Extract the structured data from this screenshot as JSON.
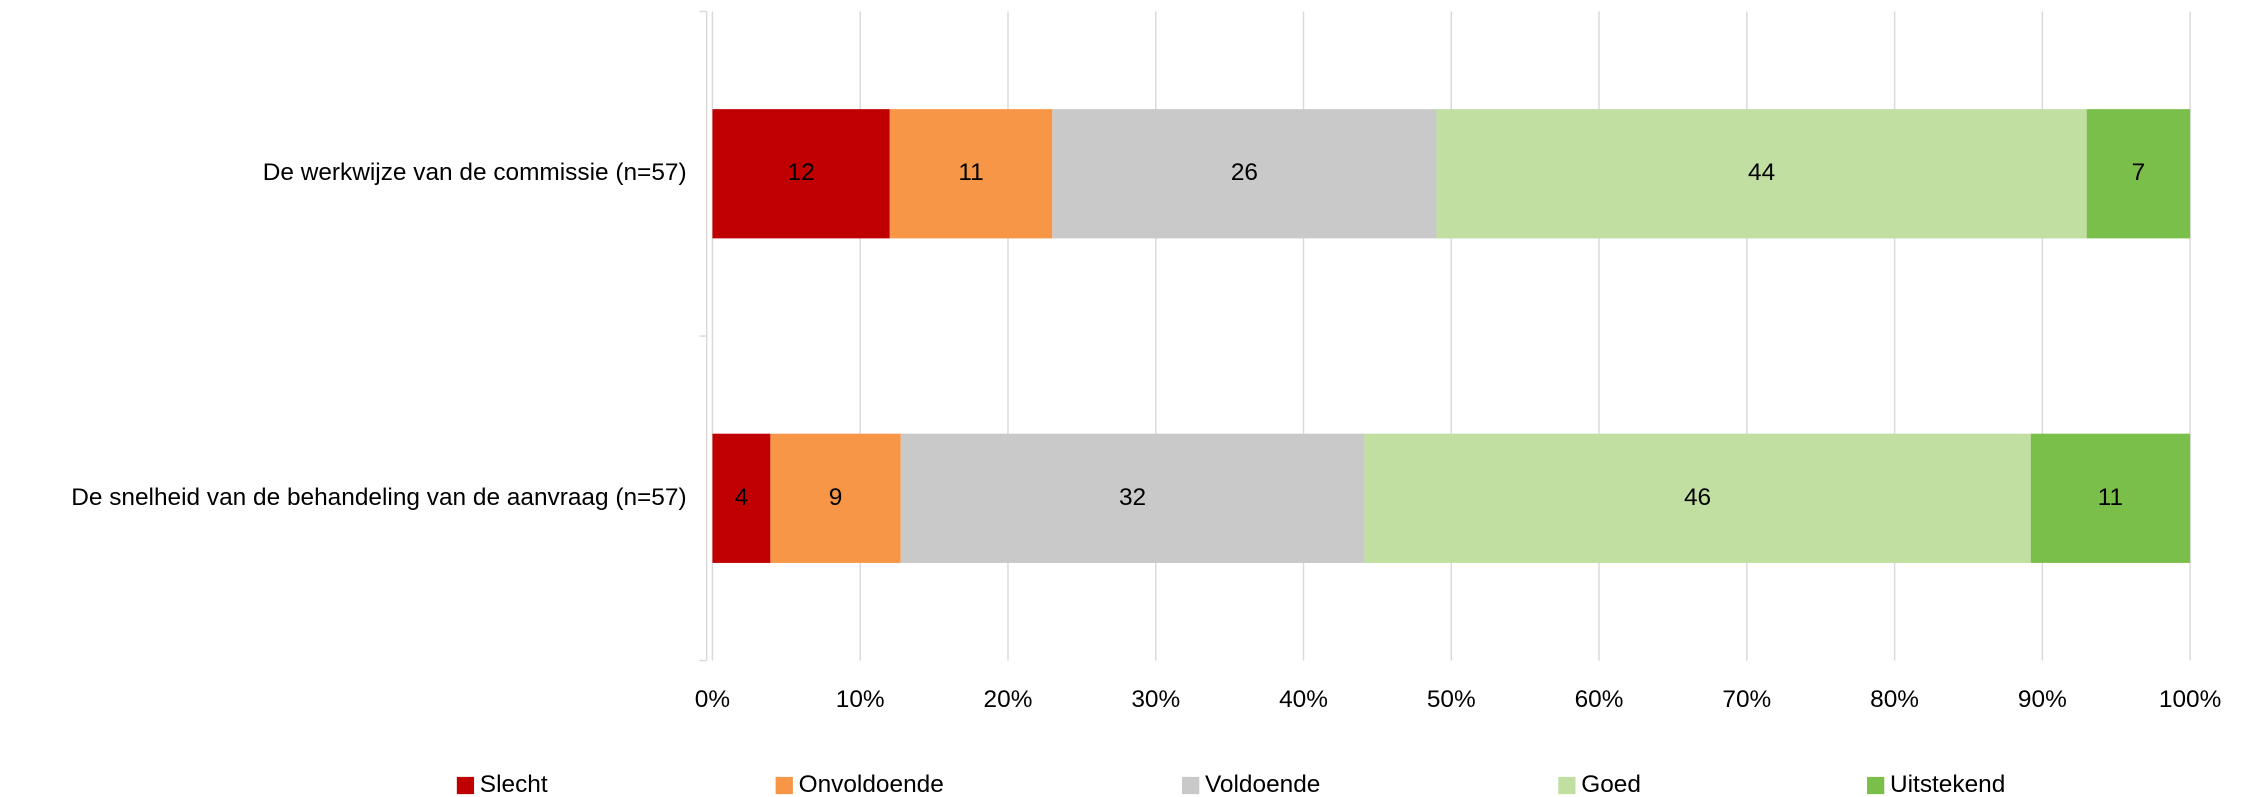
{
  "chart_data": {
    "type": "bar",
    "orientation": "horizontal",
    "stacked": "percent",
    "categories": [
      "De werkwijze van de commissie (n=57)",
      "De snelheid van de behandeling van de aanvraag (n=57)"
    ],
    "series": [
      {
        "name": "Slecht",
        "color": "#c00000",
        "values": [
          12,
          4
        ]
      },
      {
        "name": "Onvoldoende",
        "color": "#f79646",
        "values": [
          11,
          9
        ]
      },
      {
        "name": "Voldoende",
        "color": "#c9c9c9",
        "values": [
          26,
          32
        ]
      },
      {
        "name": "Goed",
        "color": "#c0dfa0",
        "values": [
          44,
          46
        ]
      },
      {
        "name": "Uitstekend",
        "color": "#7bbf4b",
        "values": [
          7,
          11
        ]
      }
    ],
    "xlim": [
      0,
      100
    ],
    "xticks": [
      {
        "value": 0,
        "label": "0%"
      },
      {
        "value": 10,
        "label": "10%"
      },
      {
        "value": 20,
        "label": "20%"
      },
      {
        "value": 30,
        "label": "30%"
      },
      {
        "value": 40,
        "label": "40%"
      },
      {
        "value": 50,
        "label": "50%"
      },
      {
        "value": 60,
        "label": "60%"
      },
      {
        "value": 70,
        "label": "70%"
      },
      {
        "value": 80,
        "label": "80%"
      },
      {
        "value": 90,
        "label": "90%"
      },
      {
        "value": 100,
        "label": "100%"
      }
    ],
    "grid": true,
    "legend": "bottom"
  }
}
